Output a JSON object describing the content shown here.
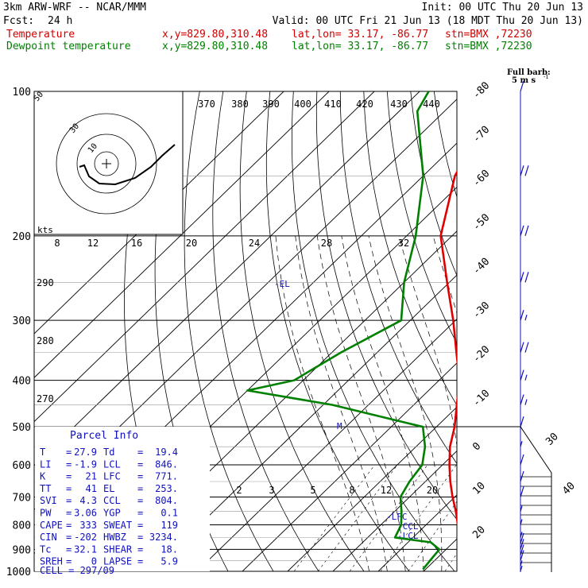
{
  "header": {
    "title": "3km ARW-WRF -- NCAR/MMM",
    "init": "Init: 00 UTC Thu 20 Jun 13",
    "fcst_label": "Fcst:",
    "fcst_value": "24 h",
    "valid": "Valid: 00 UTC Fri 21 Jun 13 (18 MDT Thu 20 Jun 13)",
    "rows": [
      {
        "name": "Temperature",
        "xy": "x,y=829.80,310.48",
        "latlon": "lat,lon= 33.17, -86.77",
        "stn": "stn=BMX ,72230",
        "color": "#d00000"
      },
      {
        "name": "Dewpoint temperature",
        "xy": "x,y=829.80,310.48",
        "latlon": "lat,lon= 33.17, -86.77",
        "stn": "stn=BMX ,72230",
        "color": "#008000"
      }
    ]
  },
  "wind_legend": {
    "title": "Full barb:",
    "value": "5 m s",
    "exp": "-1"
  },
  "hodograph": {
    "units": "kts",
    "ring_labels": [
      "10",
      "30",
      "50"
    ],
    "speed_labels": [
      "8",
      "12",
      "16",
      "20",
      "24",
      "28",
      "32"
    ]
  },
  "theta_labels": [
    "370",
    "380",
    "390",
    "400",
    "410",
    "420",
    "430",
    "440"
  ],
  "theta_e_labels": [
    "290",
    "280",
    "270"
  ],
  "mixing_ratio_labels": [
    "2",
    "3",
    "5",
    "8",
    "12",
    "20"
  ],
  "markers": [
    "EL",
    "M",
    "LFC",
    "CCL",
    "LCL"
  ],
  "parcel_info": {
    "title": "Parcel Info",
    "rows": [
      [
        "T",
        "27.9",
        "Td",
        "19.4"
      ],
      [
        "LI",
        "-1.9",
        "LCL",
        "846."
      ],
      [
        "K",
        "21",
        "LFC",
        "771."
      ],
      [
        "TT",
        "41",
        "EL",
        "253."
      ],
      [
        "SVI",
        "4.3",
        "CCL",
        "804."
      ],
      [
        "PW",
        "3.06",
        "YGP",
        "0.1"
      ],
      [
        "CAPE",
        "333",
        "SWEAT",
        "119"
      ],
      [
        "CIN",
        "-202",
        "HWBZ",
        "3234."
      ],
      [
        "Tc",
        "32.1",
        "SHEAR",
        "18."
      ],
      [
        "SREH",
        "0",
        "LAPSE",
        "5.9"
      ]
    ],
    "cell": "CELL = 297/09"
  },
  "colors": {
    "temperature": "#e00000",
    "dewpoint": "#008000",
    "wind": "#1010c0",
    "grid": "#000000"
  },
  "chart_data": {
    "type": "line",
    "subtype": "skew-T log-p",
    "y_axis": {
      "variable": "pressure",
      "units": "hPa",
      "scale": "log",
      "ticks": [
        100,
        200,
        300,
        400,
        500,
        600,
        700,
        800,
        900,
        1000
      ]
    },
    "x_axis": {
      "variable": "temperature",
      "units": "C",
      "ticks": [
        -80,
        -70,
        -60,
        -50,
        -40,
        -30,
        -20,
        -10,
        0,
        10,
        20,
        30,
        40
      ]
    },
    "series": [
      {
        "name": "Temperature",
        "pressure": [
          990,
          950,
          900,
          850,
          800,
          750,
          700,
          650,
          600,
          550,
          500,
          450,
          400,
          350,
          300,
          250,
          200,
          150,
          100
        ],
        "values": [
          27.9,
          26.0,
          23.0,
          20.5,
          17.0,
          13.5,
          9.5,
          5.5,
          1.5,
          -2.5,
          -6.0,
          -10.5,
          -15.5,
          -22.5,
          -30.5,
          -40.5,
          -52.5,
          -63.0,
          -72.0
        ]
      },
      {
        "name": "Dewpoint temperature",
        "pressure": [
          990,
          950,
          900,
          870,
          850,
          800,
          750,
          700,
          650,
          600,
          550,
          500,
          450,
          420,
          400,
          350,
          300,
          250,
          200,
          150,
          110,
          100
        ],
        "values": [
          19.4,
          19.0,
          18.5,
          15.0,
          6.0,
          4.5,
          1.5,
          -2.0,
          -3.5,
          -4.5,
          -8.0,
          -13.0,
          -38.0,
          -60.0,
          -52.0,
          -48.0,
          -42.0,
          -50.0,
          -58.0,
          -70.0,
          -86.0,
          -88.0
        ]
      }
    ],
    "wind_barbs": [
      {
        "pressure": 1000,
        "speed_ms": 2.5
      },
      {
        "pressure": 975,
        "speed_ms": 2.5
      },
      {
        "pressure": 950,
        "speed_ms": 5
      },
      {
        "pressure": 925,
        "speed_ms": 5
      },
      {
        "pressure": 900,
        "speed_ms": 5
      },
      {
        "pressure": 875,
        "speed_ms": 5
      },
      {
        "pressure": 850,
        "speed_ms": 2.5
      },
      {
        "pressure": 800,
        "speed_ms": 2.5
      },
      {
        "pressure": 750,
        "speed_ms": 2.5
      },
      {
        "pressure": 700,
        "speed_ms": 5
      },
      {
        "pressure": 650,
        "speed_ms": 5
      },
      {
        "pressure": 600,
        "speed_ms": 5
      },
      {
        "pressure": 550,
        "speed_ms": 2.5
      },
      {
        "pressure": 500,
        "speed_ms": 5
      },
      {
        "pressure": 450,
        "speed_ms": 7.5
      },
      {
        "pressure": 400,
        "speed_ms": 7.5
      },
      {
        "pressure": 350,
        "speed_ms": 10
      },
      {
        "pressure": 300,
        "speed_ms": 7.5
      },
      {
        "pressure": 250,
        "speed_ms": 10
      },
      {
        "pressure": 200,
        "speed_ms": 10
      },
      {
        "pressure": 150,
        "speed_ms": 10
      },
      {
        "pressure": 100,
        "speed_ms": 5
      }
    ]
  }
}
